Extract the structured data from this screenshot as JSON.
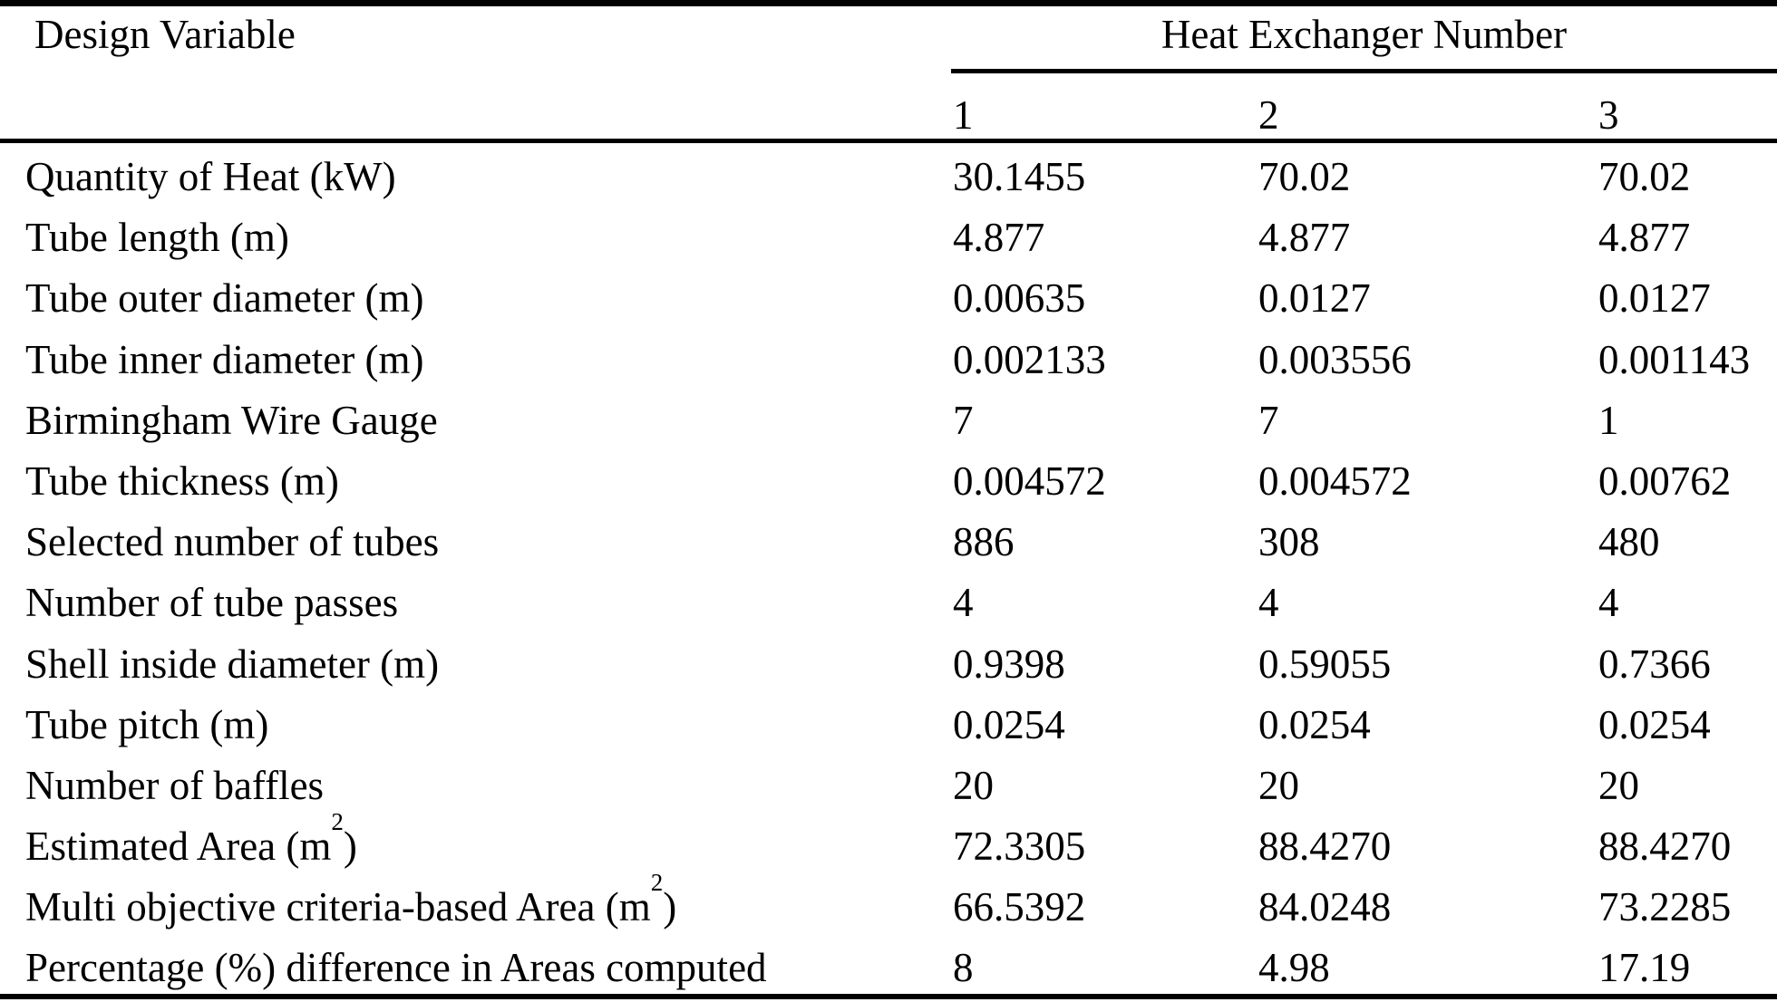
{
  "colors": {
    "background": "#ffffff",
    "text": "#000000",
    "rule": "#000000"
  },
  "chart_data": {
    "type": "table",
    "header": {
      "design_variable": "Design Variable",
      "group": "Heat Exchanger Number",
      "columns": [
        "1",
        "2",
        "3"
      ]
    },
    "rows": [
      {
        "label": "Quantity of Heat (kW)",
        "values": [
          "30.1455",
          "70.02",
          "70.02"
        ]
      },
      {
        "label": "Tube length (m)",
        "values": [
          "4.877",
          "4.877",
          "4.877"
        ]
      },
      {
        "label": "Tube outer diameter (m)",
        "values": [
          "0.00635",
          "0.0127",
          "0.0127"
        ]
      },
      {
        "label": "Tube inner diameter (m)",
        "values": [
          "0.002133",
          "0.003556",
          "0.001143"
        ]
      },
      {
        "label": "Birmingham Wire Gauge",
        "values": [
          "7",
          "7",
          "1"
        ]
      },
      {
        "label": "Tube thickness (m)",
        "values": [
          "0.004572",
          "0.004572",
          "0.00762"
        ]
      },
      {
        "label": "Selected number of tubes",
        "values": [
          "886",
          "308",
          "480"
        ]
      },
      {
        "label": "Number of tube passes",
        "values": [
          "4",
          "4",
          "4"
        ]
      },
      {
        "label": "Shell inside diameter (m)",
        "values": [
          "0.9398",
          "0.59055",
          "0.7366"
        ]
      },
      {
        "label": "Tube pitch (m)",
        "values": [
          "0.0254",
          "0.0254",
          "0.0254"
        ]
      },
      {
        "label": "Number of baffles",
        "values": [
          "20",
          "20",
          "20"
        ]
      },
      {
        "label": "Estimated Area (m",
        "sup": "2",
        "label_end": ")",
        "values": [
          "72.3305",
          "88.4270",
          "88.4270"
        ]
      },
      {
        "label": "Multi objective criteria-based Area (m",
        "sup": "2",
        "label_end": ")",
        "values": [
          "66.5392",
          "84.0248",
          "73.2285"
        ]
      },
      {
        "label": "Percentage (%) difference in Areas computed",
        "values": [
          "8",
          "4.98",
          "17.19"
        ]
      }
    ]
  }
}
